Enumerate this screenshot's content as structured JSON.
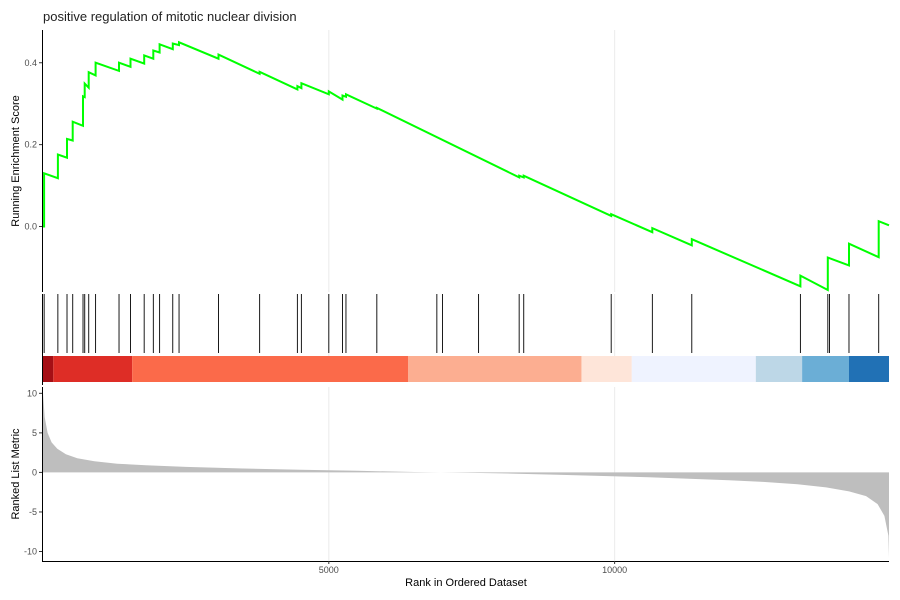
{
  "chart_data": {
    "type": "line",
    "title": "positive regulation of mitotic nuclear division",
    "xlabel": "Rank in Ordered Dataset",
    "xlim": [
      0,
      14800
    ],
    "x_ticks": [
      5000,
      10000
    ],
    "x_tick_labels": [
      "5000",
      "10000"
    ],
    "grid": true,
    "legend": "none",
    "colors": {
      "line": "#00ff00",
      "metric": "#bebebe",
      "hit": "#000000",
      "axis": "#000000",
      "grid": "#ebebeb"
    },
    "panels": {
      "es": {
        "ylabel": "Running Enrichment Score",
        "ylim": [
          -0.16,
          0.48
        ],
        "y_ticks": [
          0.0,
          0.2,
          0.4
        ],
        "y_tick_labels": [
          "0.0",
          "0.2",
          "0.4"
        ],
        "series": [
          {
            "x": [
              0,
              20,
              20,
              260,
              260,
              420,
              420,
              520,
              520,
              700,
              700,
              730,
              730,
              800,
              800,
              920,
              920,
              1330,
              1330,
              1530,
              1530,
              1770,
              1770,
              1930,
              1930,
              2040,
              2040,
              2270,
              2270,
              2380,
              2380,
              3070,
              3070,
              3790,
              3790,
              4450,
              4450,
              4520,
              4520,
              5000,
              5000,
              5240,
              5240,
              5300,
              5300,
              5840,
              5840,
              8330,
              8330,
              8410,
              8410,
              9940,
              9940,
              10660,
              10660,
              11350,
              11350,
              13250,
              13250,
              13730,
              13730,
              14100,
              14100,
              14620,
              14620,
              14800
            ],
            "y": [
              0.0,
              0.0,
              0.13,
              0.118,
              0.176,
              0.168,
              0.214,
              0.21,
              0.256,
              0.246,
              0.318,
              0.316,
              0.349,
              0.339,
              0.377,
              0.369,
              0.4,
              0.38,
              0.4,
              0.39,
              0.41,
              0.398,
              0.418,
              0.41,
              0.43,
              0.425,
              0.445,
              0.433,
              0.447,
              0.443,
              0.45,
              0.41,
              0.42,
              0.373,
              0.378,
              0.335,
              0.343,
              0.338,
              0.35,
              0.323,
              0.33,
              0.31,
              0.32,
              0.317,
              0.323,
              0.288,
              0.29,
              0.12,
              0.124,
              0.12,
              0.124,
              0.026,
              0.03,
              -0.014,
              -0.004,
              -0.046,
              -0.031,
              -0.146,
              -0.12,
              -0.155,
              -0.076,
              -0.095,
              -0.042,
              -0.075,
              0.013,
              0.003
            ]
          }
        ]
      },
      "hits": {
        "positions": [
          20,
          260,
          420,
          520,
          700,
          730,
          800,
          920,
          1330,
          1530,
          1770,
          1930,
          2040,
          2270,
          2380,
          3070,
          3790,
          4450,
          4520,
          5000,
          5240,
          5300,
          5840,
          6890,
          6990,
          7620,
          8330,
          8410,
          9940,
          10660,
          11350,
          13250,
          13730,
          13760,
          14100,
          14620
        ]
      },
      "heatmap": {
        "segments": [
          {
            "x": [
              0,
              180
            ],
            "color": "#a50f15"
          },
          {
            "x": [
              180,
              1560
            ],
            "color": "#de2d26"
          },
          {
            "x": [
              1560,
              6390
            ],
            "color": "#fb6a4a"
          },
          {
            "x": [
              6390,
              9420
            ],
            "color": "#fcae91"
          },
          {
            "x": [
              9420,
              10300
            ],
            "color": "#fee5d9"
          },
          {
            "x": [
              10300,
              12470
            ],
            "color": "#eff3ff"
          },
          {
            "x": [
              12470,
              13280
            ],
            "color": "#bdd7e7"
          },
          {
            "x": [
              13280,
              14100
            ],
            "color": "#6baed6"
          },
          {
            "x": [
              14100,
              14800
            ],
            "color": "#2171b5"
          }
        ]
      },
      "metric": {
        "ylabel": "Ranked List Metric",
        "ylim": [
          -11.2,
          10.8
        ],
        "y_ticks": [
          10,
          5,
          0,
          -5,
          -10
        ],
        "y_tick_labels": [
          "10",
          "5",
          "0",
          "-5",
          "-10"
        ],
        "series": [
          {
            "x": [
              0,
              30,
              80,
              150,
              250,
              400,
              600,
              900,
              1300,
              1800,
              2500,
              3500,
              4500,
              5500,
              6500,
              7400,
              8200,
              9000,
              9800,
              10600,
              11300,
              12000,
              12600,
              13200,
              13700,
              14100,
              14400,
              14600,
              14720,
              14790,
              14800
            ],
            "y": [
              10.0,
              7.0,
              5.0,
              3.8,
              3.0,
              2.3,
              1.8,
              1.4,
              1.1,
              0.9,
              0.7,
              0.5,
              0.35,
              0.2,
              0.05,
              -0.05,
              -0.15,
              -0.3,
              -0.45,
              -0.6,
              -0.8,
              -1.0,
              -1.2,
              -1.5,
              -1.9,
              -2.4,
              -3.0,
              -4.0,
              -5.5,
              -8.0,
              -10.8
            ]
          }
        ]
      }
    }
  }
}
